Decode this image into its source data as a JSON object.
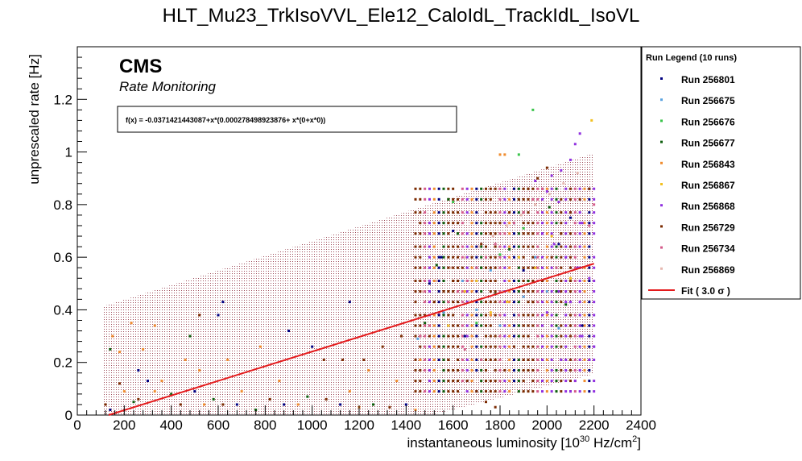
{
  "title": "HLT_Mu23_TrkIsoVVL_Ele12_CaloIdL_TrackIdL_IsoVL",
  "chart_data": {
    "type": "scatter",
    "title": "HLT_Mu23_TrkIsoVVL_Ele12_CaloIdL_TrackIdL_IsoVL",
    "ylabel": "unprescaled rate [Hz]",
    "xlabel_main": "instantaneous luminosity [10",
    "xlabel_sup1": "30",
    "xlabel_mid": " Hz/cm",
    "xlabel_sup2": "2",
    "xlabel_end": "]",
    "xlim": [
      0,
      2400
    ],
    "ylim": [
      0,
      1.4
    ],
    "x_ticks": [
      "0",
      "200",
      "400",
      "600",
      "800",
      "1000",
      "1200",
      "1400",
      "1600",
      "1800",
      "2000",
      "2200",
      "2400"
    ],
    "y_ticks": [
      "0",
      "0.2",
      "0.4",
      "0.6",
      "0.8",
      "1",
      "1.2"
    ],
    "x_tick_values": [
      0,
      200,
      400,
      600,
      800,
      1000,
      1200,
      1400,
      1600,
      1800,
      2000,
      2200,
      2400
    ],
    "y_tick_values": [
      0,
      0.2,
      0.4,
      0.6,
      0.8,
      1.0,
      1.2
    ],
    "grid": false,
    "cms_label": "CMS",
    "cms_sublabel": "Rate Monitoring",
    "fit_formula": "f(x) = -0.0371421443087+x*(0.000278498923876+ x*(0+x*0))",
    "fit": {
      "intercept": -0.0371421443087,
      "slope": 0.000278498923876,
      "x_range": [
        110,
        2200
      ],
      "sigma_band": 0.42,
      "color": "#e41a1c"
    },
    "legend": {
      "title": "Run Legend (10 runs)",
      "placement": "right",
      "fit_label": "Fit ( 3.0  σ )"
    },
    "series": [
      {
        "name": "Run 256801",
        "color": "#000080",
        "points": [
          [
            620,
            0.43
          ],
          [
            1160,
            0.43
          ],
          [
            600,
            0.38
          ],
          [
            900,
            0.32
          ],
          [
            1500,
            0.5
          ],
          [
            1600,
            0.7
          ],
          [
            1700,
            0.6
          ],
          [
            1900,
            0.55
          ],
          [
            2050,
            0.65
          ],
          [
            2150,
            0.34
          ],
          [
            1550,
            0.6
          ],
          [
            1650,
            0.3
          ],
          [
            2100,
            0.75
          ],
          [
            1000,
            0.26
          ]
        ]
      },
      {
        "name": "Run 256675",
        "color": "#5aa3e0",
        "points": [
          [
            1450,
            0.29
          ],
          [
            1560,
            0.39
          ],
          [
            1640,
            0.51
          ],
          [
            1700,
            0.4
          ],
          [
            1760,
            0.55
          ],
          [
            1800,
            0.34
          ],
          [
            1900,
            0.45
          ],
          [
            1950,
            0.6
          ],
          [
            2000,
            0.47
          ],
          [
            2050,
            0.33
          ]
        ]
      },
      {
        "name": "Run 256676",
        "color": "#39c44a",
        "points": [
          [
            1940,
            1.16
          ],
          [
            1880,
            0.99
          ],
          [
            1600,
            0.81
          ],
          [
            1700,
            0.35
          ],
          [
            1800,
            0.61
          ],
          [
            1900,
            0.71
          ]
        ]
      },
      {
        "name": "Run 256677",
        "color": "#0d5e0d",
        "points": [
          [
            1580,
            0.82
          ],
          [
            1620,
            0.69
          ],
          [
            1720,
            0.56
          ],
          [
            1780,
            0.46
          ],
          [
            1840,
            0.63
          ],
          [
            1920,
            0.51
          ],
          [
            2010,
            0.79
          ],
          [
            2080,
            0.42
          ],
          [
            1480,
            0.35
          ],
          [
            1530,
            0.57
          ]
        ]
      },
      {
        "name": "Run 256843",
        "color": "#f08c2e",
        "points": [
          [
            150,
            0.3
          ],
          [
            180,
            0.24
          ],
          [
            230,
            0.35
          ],
          [
            280,
            0.25
          ],
          [
            360,
            0.13
          ],
          [
            460,
            0.21
          ],
          [
            520,
            0.17
          ],
          [
            640,
            0.21
          ],
          [
            780,
            0.26
          ],
          [
            860,
            0.13
          ],
          [
            1160,
            0.09
          ],
          [
            1240,
            0.17
          ],
          [
            1360,
            0.13
          ],
          [
            1460,
            0.21
          ],
          [
            1800,
            0.99
          ],
          [
            1820,
            0.99
          ],
          [
            1680,
            0.43
          ],
          [
            1760,
            0.38
          ]
        ]
      },
      {
        "name": "Run 256867",
        "color": "#f2c020",
        "points": [
          [
            2190,
            1.12
          ],
          [
            1580,
            0.34
          ],
          [
            1650,
            0.47
          ],
          [
            1700,
            0.51
          ],
          [
            1760,
            0.39
          ],
          [
            1830,
            0.43
          ],
          [
            1880,
            0.6
          ],
          [
            1950,
            0.56
          ],
          [
            2020,
            0.68
          ],
          [
            2100,
            0.52
          ]
        ]
      },
      {
        "name": "Run 256868",
        "color": "#9030e0",
        "points": [
          [
            2140,
            1.07
          ],
          [
            2120,
            1.03
          ],
          [
            2100,
            0.97
          ],
          [
            2060,
            0.93
          ],
          [
            2020,
            0.91
          ],
          [
            1950,
            0.89
          ],
          [
            2000,
            0.85
          ],
          [
            2050,
            0.81
          ],
          [
            2100,
            0.77
          ],
          [
            2150,
            0.73
          ],
          [
            1980,
            0.69
          ],
          [
            2030,
            0.65
          ],
          [
            2080,
            0.6
          ],
          [
            2130,
            0.56
          ],
          [
            2180,
            0.52
          ],
          [
            2050,
            0.47
          ],
          [
            2100,
            0.43
          ],
          [
            2000,
            0.39
          ],
          [
            1980,
            0.34
          ],
          [
            2150,
            0.3
          ],
          [
            2200,
            0.26
          ],
          [
            2060,
            0.21
          ],
          [
            2080,
            0.09
          ],
          [
            2100,
            0.09
          ],
          [
            2120,
            0.13
          ],
          [
            2180,
            0.21
          ]
        ]
      },
      {
        "name": "Run 256729",
        "color": "#7a2a00",
        "points": [
          [
            1480,
            0.38
          ],
          [
            1520,
            0.43
          ],
          [
            1560,
            0.47
          ],
          [
            1600,
            0.51
          ],
          [
            1640,
            0.56
          ],
          [
            1680,
            0.6
          ],
          [
            1720,
            0.65
          ],
          [
            1760,
            0.69
          ],
          [
            1800,
            0.73
          ],
          [
            1840,
            0.77
          ],
          [
            1880,
            0.82
          ],
          [
            1920,
            0.86
          ],
          [
            1960,
            0.9
          ],
          [
            2000,
            0.94
          ],
          [
            1500,
            0.3
          ],
          [
            1540,
            0.26
          ],
          [
            1580,
            0.21
          ],
          [
            1620,
            0.17
          ],
          [
            1660,
            0.13
          ],
          [
            1700,
            0.09
          ],
          [
            1740,
            0.05
          ],
          [
            1780,
            0.03
          ],
          [
            1820,
            0.17
          ],
          [
            1860,
            0.26
          ],
          [
            1900,
            0.34
          ],
          [
            1940,
            0.43
          ],
          [
            1980,
            0.51
          ],
          [
            2020,
            0.6
          ],
          [
            2060,
            0.69
          ],
          [
            2100,
            0.77
          ],
          [
            2140,
            0.82
          ],
          [
            2180,
            0.86
          ],
          [
            1050,
            0.21
          ],
          [
            1130,
            0.21
          ],
          [
            1220,
            0.21
          ],
          [
            1300,
            0.26
          ],
          [
            1380,
            0.3
          ],
          [
            1440,
            0.34
          ]
        ]
      },
      {
        "name": "Run 256734",
        "color": "#d45a8a",
        "points": [
          [
            1460,
            0.3
          ],
          [
            1500,
            0.34
          ],
          [
            1540,
            0.39
          ],
          [
            1580,
            0.43
          ],
          [
            1620,
            0.47
          ],
          [
            1660,
            0.51
          ],
          [
            1700,
            0.56
          ],
          [
            1740,
            0.6
          ],
          [
            1780,
            0.65
          ],
          [
            1820,
            0.69
          ],
          [
            1860,
            0.73
          ],
          [
            1900,
            0.77
          ],
          [
            1940,
            0.82
          ],
          [
            1980,
            0.86
          ],
          [
            1650,
            0.25
          ],
          [
            1720,
            0.21
          ],
          [
            1800,
            0.3
          ],
          [
            1880,
            0.38
          ],
          [
            1960,
            0.47
          ],
          [
            2040,
            0.56
          ],
          [
            2120,
            0.64
          ],
          [
            2180,
            0.72
          ],
          [
            2200,
            0.8
          ]
        ]
      },
      {
        "name": "Run 256869",
        "color": "#e6b8b0",
        "points": [
          [
            1470,
            0.47
          ],
          [
            1530,
            0.51
          ],
          [
            1590,
            0.56
          ],
          [
            1650,
            0.6
          ],
          [
            1710,
            0.64
          ],
          [
            1770,
            0.68
          ],
          [
            1830,
            0.72
          ],
          [
            1890,
            0.76
          ],
          [
            1950,
            0.8
          ],
          [
            2010,
            0.84
          ],
          [
            2070,
            0.88
          ],
          [
            2130,
            0.92
          ]
        ]
      }
    ],
    "dense_rows": {
      "y_levels": [
        0.09,
        0.13,
        0.17,
        0.21,
        0.26,
        0.3,
        0.34,
        0.38,
        0.43,
        0.47,
        0.51,
        0.56,
        0.6,
        0.64,
        0.69,
        0.73,
        0.77,
        0.82,
        0.86
      ],
      "x_range": [
        1440,
        2200
      ],
      "x_step": 20,
      "colors": [
        "#7a2a00",
        "#7a2a00",
        "#7a2a00",
        "#d45a8a",
        "#9030e0",
        "#f08c2e",
        "#000080",
        "#0d5e0d"
      ]
    },
    "sparse_low_points": [
      [
        120,
        0.04
      ],
      [
        140,
        0.02
      ],
      [
        200,
        0.09
      ],
      [
        240,
        0.05
      ],
      [
        260,
        0.06
      ],
      [
        300,
        0.13
      ],
      [
        330,
        0.09
      ],
      [
        400,
        0.08
      ],
      [
        440,
        0.04
      ],
      [
        500,
        0.09
      ],
      [
        540,
        0.04
      ],
      [
        580,
        0.06
      ],
      [
        620,
        0.04
      ],
      [
        680,
        0.04
      ],
      [
        700,
        0.09
      ],
      [
        760,
        0.02
      ],
      [
        820,
        0.06
      ],
      [
        880,
        0.04
      ],
      [
        940,
        0.04
      ],
      [
        980,
        0.07
      ],
      [
        1060,
        0.06
      ],
      [
        1120,
        0.04
      ],
      [
        1200,
        0.03
      ],
      [
        1260,
        0.04
      ],
      [
        1330,
        0.03
      ],
      [
        1400,
        0.04
      ],
      [
        1440,
        0.02
      ],
      [
        140,
        0.25
      ],
      [
        180,
        0.12
      ],
      [
        260,
        0.17
      ],
      [
        330,
        0.34
      ],
      [
        480,
        0.3
      ],
      [
        520,
        0.38
      ]
    ]
  }
}
